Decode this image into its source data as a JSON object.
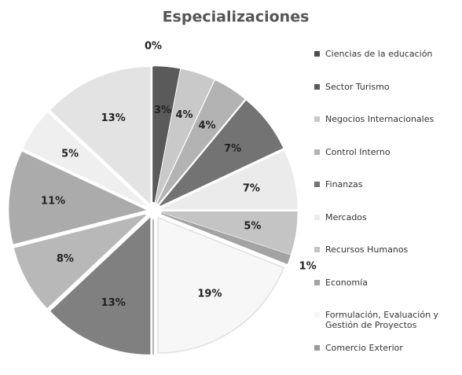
{
  "chart_data": {
    "type": "pie",
    "title": "Especializaciones",
    "categories": [
      "Ciencias de la educación",
      "Sector Turismo",
      "Negocios Internacionales",
      "Control Interno",
      "Finanzas",
      "Mercados",
      "Recursos Humanos",
      "Economía",
      "Formulación, Evaluación y Gestión de Proyectos",
      "Comercio Exterior",
      null,
      null,
      null,
      null,
      null
    ],
    "values": [
      0,
      3,
      4,
      4,
      7,
      7,
      5,
      1,
      19,
      0,
      13,
      8,
      11,
      5,
      13
    ],
    "value_labels": [
      "0%",
      "3%",
      "4%",
      "4%",
      "7%",
      "7%",
      "5%",
      "1%",
      "19%",
      "0%",
      "13%",
      "8%",
      "11%",
      "5%",
      "13%"
    ],
    "colors": [
      "#4d4d4d",
      "#5a5a5a",
      "#c9c9c9",
      "#b3b3b3",
      "#737373",
      "#ebebeb",
      "#c4c4c4",
      "#a3a3a3",
      "#f7f7f7",
      "#9a9a9a",
      "#808080",
      "#b8b8b8",
      "#ababab",
      "#efefef",
      "#e3e3e3"
    ]
  }
}
